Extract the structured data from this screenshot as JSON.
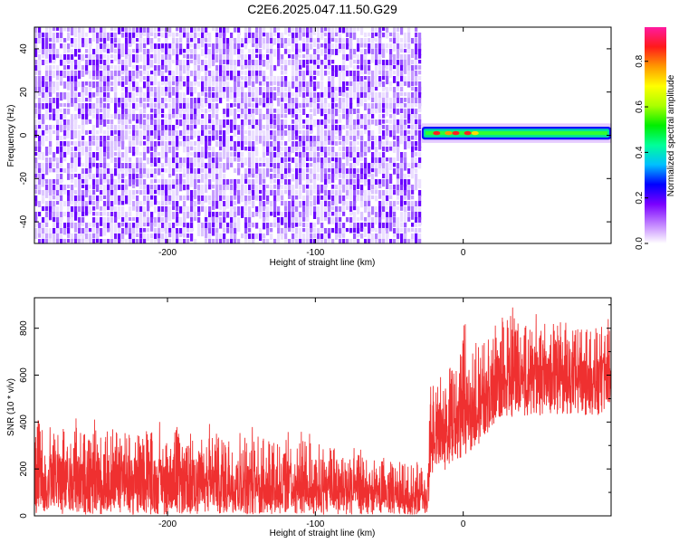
{
  "title": "C2E6.2025.047.11.50.G29",
  "chart_data": [
    {
      "type": "heatmap",
      "xlabel": "Height of straight line (km)",
      "ylabel": "Frequency (Hz)",
      "xlim": [
        -290,
        100
      ],
      "ylim": [
        -50,
        50
      ],
      "x_ticks": [
        -200,
        -100,
        0
      ],
      "x_tick_labels": [
        "-200",
        "-100",
        "0"
      ],
      "y_ticks": [
        -40,
        -20,
        0,
        20,
        40
      ],
      "y_tick_labels": [
        "-40",
        "-20",
        "0",
        "20",
        "40"
      ],
      "noise_region_x": [
        -290,
        -28
      ],
      "signal_band": {
        "x": [
          -28,
          100
        ],
        "freq_center": 1,
        "freq_halfwidth": 2.5
      },
      "colorbar": {
        "label": "Normalized spectral amplitude",
        "range": [
          0.0,
          0.95
        ],
        "ticks": [
          0.0,
          0.2,
          0.4,
          0.6,
          0.8
        ],
        "tick_labels": [
          "0.0",
          "0.2",
          "0.4",
          "0.6",
          "0.8"
        ],
        "colors": [
          "#ffffff",
          "#c080ff",
          "#7a00ff",
          "#0000ff",
          "#00bfff",
          "#00ff99",
          "#00ee00",
          "#aaff00",
          "#ffff00",
          "#ff9900",
          "#ff1a1a",
          "#ff1aa0"
        ]
      },
      "grid": false
    },
    {
      "type": "line",
      "xlabel": "Height of straight line (km)",
      "ylabel": "SNR (10 * v/v)",
      "xlim": [
        -290,
        100
      ],
      "ylim": [
        0,
        930
      ],
      "x_ticks": [
        -200,
        -100,
        0
      ],
      "x_tick_labels": [
        "-200",
        "-100",
        "0"
      ],
      "y_ticks": [
        0,
        200,
        400,
        600,
        800
      ],
      "y_tick_labels": [
        "0",
        "200",
        "400",
        "600",
        "800"
      ],
      "color": "#ef3030",
      "envelope": [
        {
          "x": -290,
          "low": 5,
          "mean": 190,
          "high": 430
        },
        {
          "x": -250,
          "low": 5,
          "mean": 190,
          "high": 420
        },
        {
          "x": -200,
          "low": 5,
          "mean": 185,
          "high": 410
        },
        {
          "x": -150,
          "low": 5,
          "mean": 170,
          "high": 390
        },
        {
          "x": -100,
          "low": 5,
          "mean": 150,
          "high": 360
        },
        {
          "x": -60,
          "low": 5,
          "mean": 110,
          "high": 270
        },
        {
          "x": -30,
          "low": 5,
          "mean": 90,
          "high": 250
        },
        {
          "x": -24,
          "low": 5,
          "mean": 80,
          "high": 230
        },
        {
          "x": -22,
          "low": 150,
          "mean": 320,
          "high": 640
        },
        {
          "x": 0,
          "low": 250,
          "mean": 450,
          "high": 820
        },
        {
          "x": 15,
          "low": 330,
          "mean": 520,
          "high": 800
        },
        {
          "x": 25,
          "low": 420,
          "mean": 640,
          "high": 900
        },
        {
          "x": 60,
          "low": 430,
          "mean": 630,
          "high": 880
        },
        {
          "x": 100,
          "low": 430,
          "mean": 620,
          "high": 860
        }
      ],
      "grid": false
    }
  ]
}
